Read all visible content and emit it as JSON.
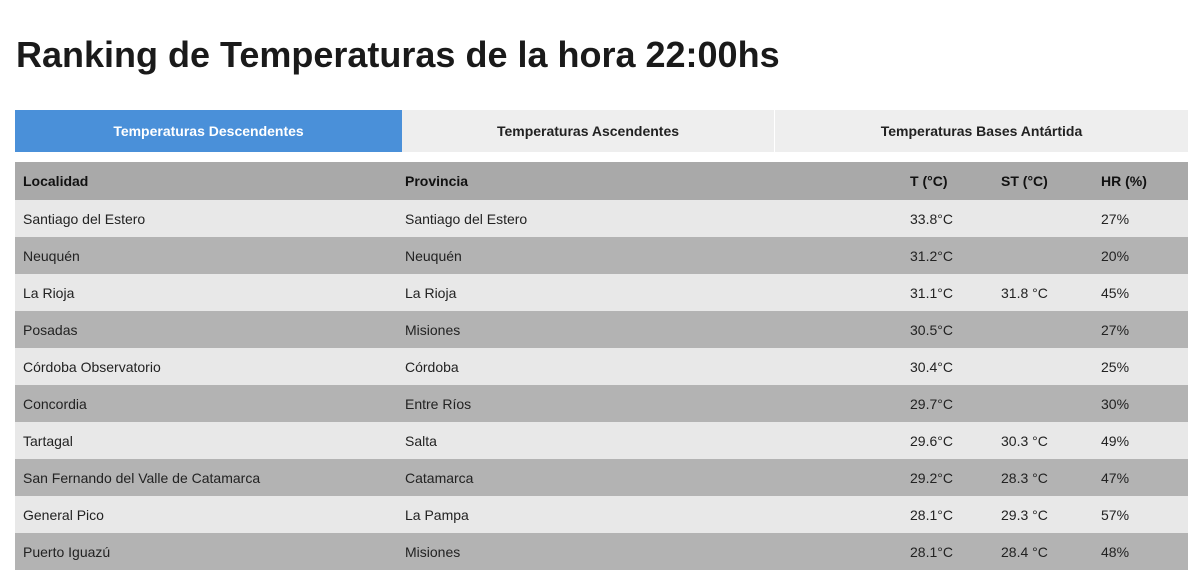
{
  "page": {
    "title": "Ranking de Temperaturas de la hora 22:00hs"
  },
  "tabs": [
    {
      "label": "Temperaturas Descendentes",
      "active": true
    },
    {
      "label": "Temperaturas Ascendentes",
      "active": false
    },
    {
      "label": "Temperaturas Bases Antártida",
      "active": false
    }
  ],
  "table": {
    "headers": {
      "localidad": "Localidad",
      "provincia": "Provincia",
      "t": "T (°C)",
      "st": "ST (°C)",
      "hr": "HR (%)"
    },
    "rows": [
      {
        "localidad": "Santiago del Estero",
        "provincia": "Santiago del Estero",
        "t": "33.8°C",
        "st": "",
        "hr": "27%"
      },
      {
        "localidad": "Neuquén",
        "provincia": "Neuquén",
        "t": "31.2°C",
        "st": "",
        "hr": "20%"
      },
      {
        "localidad": "La Rioja",
        "provincia": "La Rioja",
        "t": "31.1°C",
        "st": "31.8 °C",
        "hr": "45%"
      },
      {
        "localidad": "Posadas",
        "provincia": "Misiones",
        "t": "30.5°C",
        "st": "",
        "hr": "27%"
      },
      {
        "localidad": "Córdoba Observatorio",
        "provincia": "Córdoba",
        "t": "30.4°C",
        "st": "",
        "hr": "25%"
      },
      {
        "localidad": "Concordia",
        "provincia": "Entre Ríos",
        "t": "29.7°C",
        "st": "",
        "hr": "30%"
      },
      {
        "localidad": "Tartagal",
        "provincia": "Salta",
        "t": "29.6°C",
        "st": "30.3 °C",
        "hr": "49%"
      },
      {
        "localidad": "San Fernando del Valle de Catamarca",
        "provincia": "Catamarca",
        "t": "29.2°C",
        "st": "28.3 °C",
        "hr": "47%"
      },
      {
        "localidad": "General Pico",
        "provincia": "La Pampa",
        "t": "28.1°C",
        "st": "29.3 °C",
        "hr": "57%"
      },
      {
        "localidad": "Puerto Iguazú",
        "provincia": "Misiones",
        "t": "28.1°C",
        "st": "28.4 °C",
        "hr": "48%"
      }
    ]
  },
  "colors": {
    "accent": "#4a90d9",
    "header_bg": "#a9a9a9",
    "row_light": "#e8e8e8",
    "row_dark": "#b3b3b3",
    "tab_inactive": "#eeeeee"
  }
}
